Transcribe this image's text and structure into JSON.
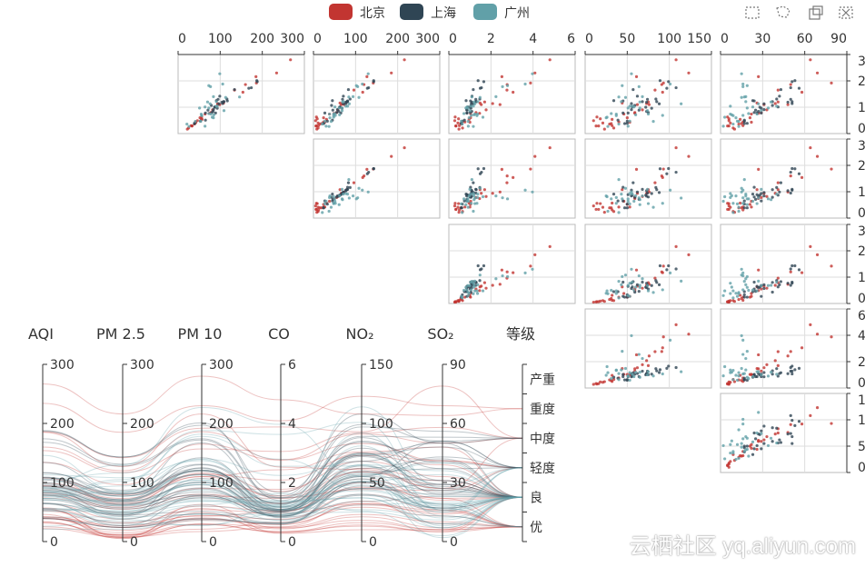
{
  "legend": [
    {
      "name": "北京",
      "color": "#c23531"
    },
    {
      "name": "上海",
      "color": "#2f4554"
    },
    {
      "name": "广州",
      "color": "#61a0a8"
    }
  ],
  "toolbox": [
    {
      "icon": "rect-select-icon"
    },
    {
      "icon": "lasso-select-icon"
    },
    {
      "icon": "keep-selection-icon"
    },
    {
      "icon": "clear-selection-icon"
    }
  ],
  "watermark": "云栖社区 yq.aliyun.com",
  "chart_data": {
    "type": "scatter-matrix + parallel",
    "dimensions": [
      "AQI",
      "PM 2.5",
      "PM 10",
      "CO",
      "NO₂",
      "SO₂",
      "等级"
    ],
    "dimension_max": [
      300,
      300,
      300,
      6,
      150,
      90
    ],
    "ticks": [
      [
        "0",
        "100",
        "200",
        "300"
      ],
      [
        "0",
        "100",
        "200",
        "300"
      ],
      [
        "0",
        "100",
        "200",
        "300"
      ],
      [
        "0",
        "2",
        "4",
        "6"
      ],
      [
        "0",
        "50",
        "100",
        "150"
      ],
      [
        "0",
        "30",
        "60",
        "90"
      ]
    ],
    "levels": [
      "优",
      "良",
      "轻度",
      "中度",
      "重度",
      "严重"
    ],
    "level_labels": [
      "优",
      "良",
      "轻度",
      "中度",
      "重度",
      "产重"
    ],
    "matrix_columns": [
      0,
      1,
      3,
      4,
      5
    ],
    "matrix_rows": [
      2,
      0,
      1,
      3,
      4
    ],
    "series": [
      {
        "name": "北京",
        "values": [
          [
            55,
            9,
            56,
            0.46,
            18,
            6
          ],
          [
            25,
            11,
            21,
            0.65,
            34,
            9
          ],
          [
            56,
            7,
            63,
            0.3,
            14,
            5
          ],
          [
            33,
            7,
            29,
            0.33,
            16,
            6
          ],
          [
            42,
            24,
            44,
            0.76,
            40,
            16
          ],
          [
            82,
            58,
            90,
            1.77,
            68,
            33
          ],
          [
            74,
            49,
            77,
            1.46,
            59,
            27
          ],
          [
            78,
            55,
            80,
            1.29,
            59,
            29
          ],
          [
            267,
            216,
            280,
            4.8,
            108,
            64
          ],
          [
            185,
            127,
            216,
            2.52,
            61,
            27
          ],
          [
            39,
            19,
            38,
            0.57,
            31,
            15
          ],
          [
            41,
            11,
            40,
            0.43,
            21,
            7
          ],
          [
            64,
            38,
            74,
            1.04,
            46,
            22
          ],
          [
            108,
            79,
            120,
            1.7,
            75,
            41
          ],
          [
            108,
            63,
            116,
            1.48,
            44,
            26
          ],
          [
            33,
            6,
            29,
            0.34,
            13,
            5
          ],
          [
            94,
            66,
            110,
            1.54,
            62,
            31
          ],
          [
            186,
            142,
            192,
            3.88,
            93,
            79
          ],
          [
            57,
            31,
            54,
            0.96,
            32,
            14
          ],
          [
            22,
            8,
            17,
            0.48,
            23,
            10
          ],
          [
            39,
            15,
            36,
            0.61,
            29,
            13
          ],
          [
            94,
            69,
            114,
            2.08,
            73,
            39
          ],
          [
            99,
            73,
            110,
            2.43,
            76,
            48
          ],
          [
            31,
            12,
            30,
            0.5,
            32,
            16
          ],
          [
            42,
            27,
            43,
            1,
            53,
            22
          ],
          [
            154,
            117,
            157,
            3.05,
            92,
            58
          ],
          [
            234,
            185,
            230,
            4.09,
            123,
            69
          ],
          [
            160,
            120,
            186,
            2.77,
            91,
            50
          ],
          [
            134,
            96,
            165,
            2.76,
            83,
            41
          ],
          [
            52,
            24,
            60,
            1.03,
            50,
            21
          ],
          [
            46,
            5,
            49,
            0.28,
            10,
            6
          ]
        ]
      },
      {
        "name": "上海",
        "values": [
          [
            91,
            45,
            125,
            0.82,
            34,
            23
          ],
          [
            65,
            27,
            78,
            0.86,
            45,
            29
          ],
          [
            83,
            60,
            84,
            1.09,
            73,
            27
          ],
          [
            109,
            81,
            121,
            1.28,
            68,
            51
          ],
          [
            106,
            77,
            114,
            1.07,
            55,
            51
          ],
          [
            89,
            65,
            78,
            0.86,
            51,
            26
          ],
          [
            53,
            33,
            47,
            0.64,
            50,
            17
          ],
          [
            80,
            55,
            80,
            1.01,
            75,
            24
          ],
          [
            117,
            81,
            124,
            1.03,
            45,
            24
          ],
          [
            99,
            71,
            142,
            1.1,
            62,
            42
          ],
          [
            95,
            69,
            130,
            1.28,
            74,
            50
          ],
          [
            116,
            87,
            131,
            1.47,
            84,
            40
          ],
          [
            108,
            80,
            121,
            1.3,
            85,
            37
          ],
          [
            134,
            83,
            167,
            1.16,
            57,
            43
          ],
          [
            79,
            43,
            107,
            1.05,
            59,
            37
          ],
          [
            71,
            46,
            89,
            0.86,
            64,
            25
          ],
          [
            97,
            71,
            113,
            1.17,
            88,
            31
          ],
          [
            84,
            57,
            91,
            0.85,
            55,
            31
          ],
          [
            87,
            63,
            101,
            0.9,
            56,
            41
          ],
          [
            104,
            77,
            119,
            1.09,
            73,
            48
          ],
          [
            87,
            62,
            100,
            1,
            72,
            28
          ],
          [
            168,
            128,
            172,
            1.49,
            97,
            56
          ],
          [
            65,
            45,
            51,
            0.74,
            39,
            17
          ],
          [
            39,
            24,
            38,
            0.61,
            47,
            17
          ],
          [
            39,
            24,
            39,
            0.59,
            50,
            19
          ],
          [
            93,
            68,
            96,
            1.05,
            79,
            29
          ],
          [
            188,
            143,
            197,
            1.66,
            99,
            51
          ],
          [
            174,
            131,
            174,
            1.55,
            108,
            50
          ],
          [
            187,
            143,
            201,
            1.39,
            89,
            53
          ]
        ]
      },
      {
        "name": "广州",
        "values": [
          [
            26,
            37,
            27,
            1.163,
            27,
            13
          ],
          [
            85,
            62,
            71,
            1.195,
            60,
            8
          ],
          [
            78,
            38,
            74,
            1.363,
            37,
            7
          ],
          [
            21,
            21,
            36,
            0.634,
            40,
            9
          ],
          [
            41,
            42,
            46,
            0.915,
            81,
            13
          ],
          [
            56,
            52,
            69,
            1.067,
            92,
            16
          ],
          [
            64,
            30,
            28,
            0.924,
            51,
            2
          ],
          [
            55,
            48,
            74,
            1.236,
            75,
            26
          ],
          [
            76,
            85,
            113,
            1.237,
            114,
            27
          ],
          [
            91,
            81,
            104,
            1.041,
            56,
            40
          ],
          [
            84,
            39,
            60,
            0.964,
            25,
            11
          ],
          [
            64,
            51,
            101,
            0.862,
            58,
            23
          ],
          [
            70,
            69,
            120,
            1.198,
            65,
            36
          ],
          [
            77,
            105,
            178,
            2.549,
            64,
            16
          ],
          [
            109,
            68,
            87,
            0.996,
            74,
            29
          ],
          [
            73,
            68,
            97,
            0.905,
            51,
            34
          ],
          [
            54,
            27,
            47,
            0.592,
            53,
            12
          ],
          [
            51,
            61,
            97,
            0.811,
            65,
            19
          ],
          [
            91,
            71,
            121,
            1.374,
            43,
            18
          ],
          [
            73,
            102,
            182,
            2.787,
            44,
            19
          ],
          [
            73,
            50,
            76,
            0.717,
            31,
            20
          ],
          [
            84,
            94,
            140,
            2.238,
            68,
            18
          ],
          [
            93,
            77,
            104,
            1.165,
            53,
            7
          ],
          [
            99,
            130,
            227,
            3.97,
            55,
            15
          ],
          [
            146,
            84,
            139,
            1.094,
            40,
            17
          ],
          [
            113,
            108,
            137,
            1.481,
            48,
            15
          ],
          [
            81,
            48,
            62,
            1.619,
            26,
            3
          ],
          [
            56,
            48,
            68,
            1.336,
            37,
            9
          ],
          [
            106,
            116,
            188,
            3.628,
            101,
            16
          ]
        ]
      }
    ]
  }
}
